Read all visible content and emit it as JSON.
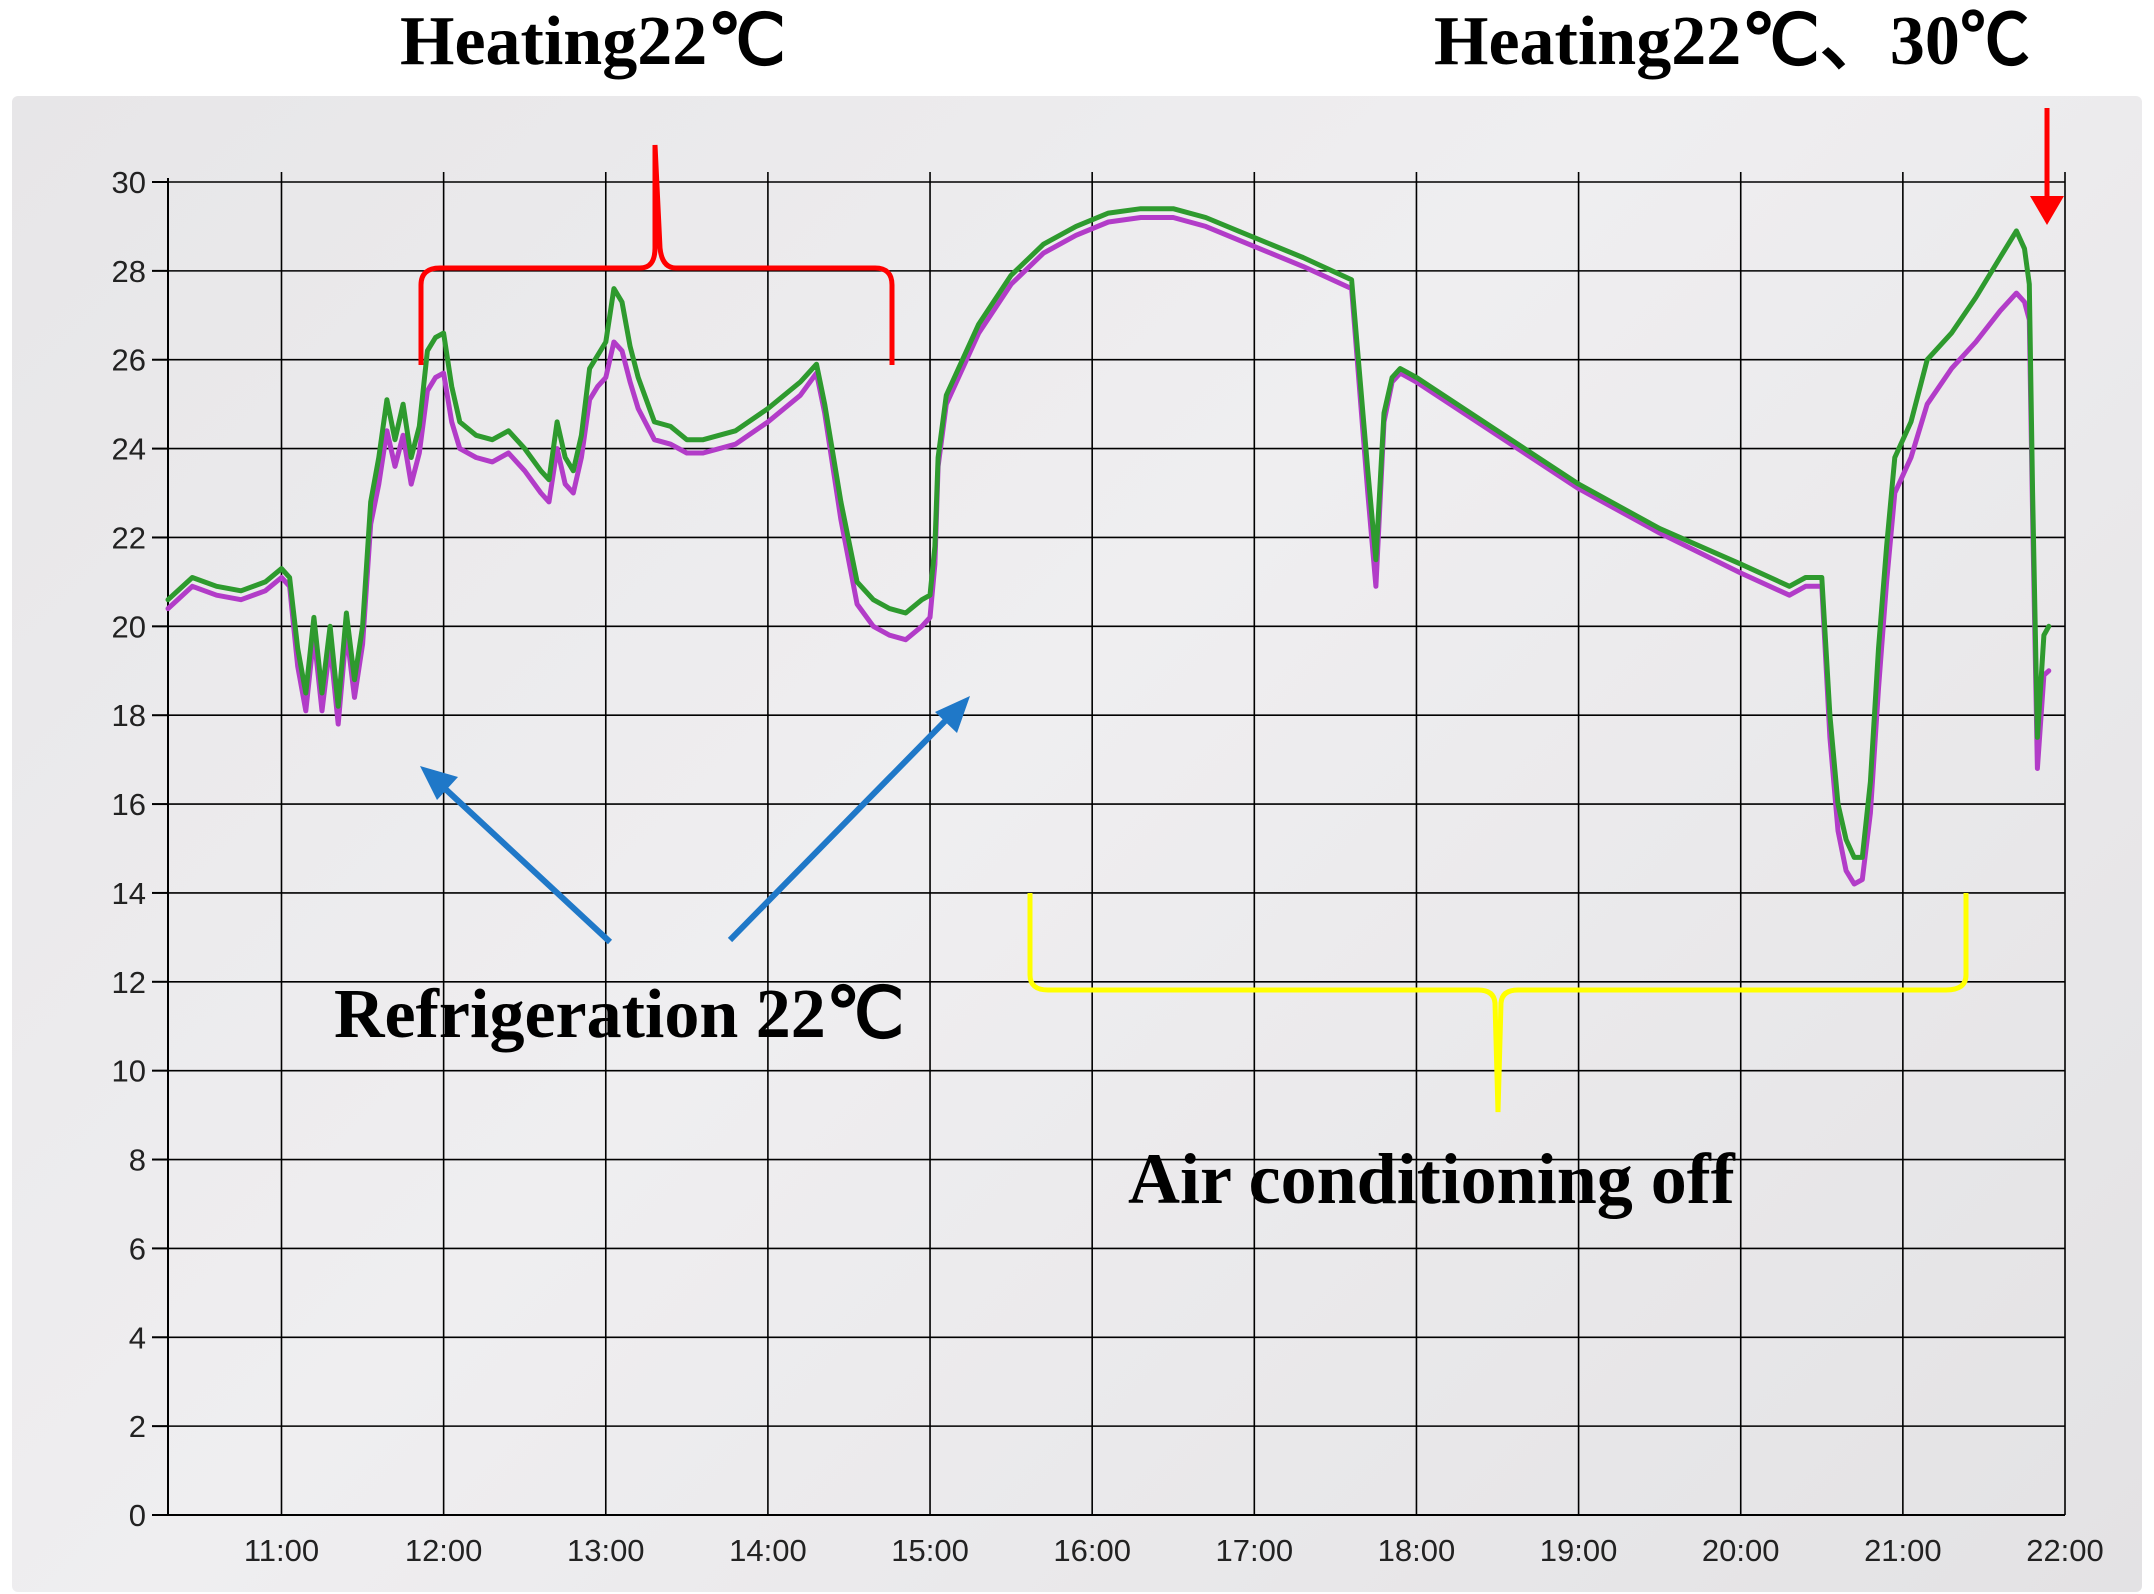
{
  "annotations": {
    "heating_left": "Heating22℃",
    "heating_right": "Heating22℃、30℃",
    "refrigeration": "Refrigeration 22℃",
    "ac_off": "Air conditioning off"
  },
  "colors": {
    "heating": "#ff0000",
    "refrigeration": "#1f78c8",
    "ac_off": "#ffff00",
    "series_upper": "#2e9a2e",
    "series_lower": "#b23cc8",
    "grid": "#000000"
  },
  "chart_data": {
    "type": "line",
    "xlabel": "",
    "ylabel": "",
    "xlim": [
      10.3,
      22.0
    ],
    "ylim": [
      0,
      30
    ],
    "grid": true,
    "legend": "none",
    "x_tick_labels": [
      "11:00",
      "12:00",
      "13:00",
      "14:00",
      "15:00",
      "16:00",
      "17:00",
      "18:00",
      "19:00",
      "20:00",
      "21:00",
      "22:00"
    ],
    "x_ticks": [
      11,
      12,
      13,
      14,
      15,
      16,
      17,
      18,
      19,
      20,
      21,
      22
    ],
    "y_tick_labels": [
      "0",
      "2",
      "4",
      "6",
      "8",
      "10",
      "12",
      "14",
      "16",
      "18",
      "20",
      "22",
      "24",
      "26",
      "28",
      "30"
    ],
    "y_ticks": [
      0,
      2,
      4,
      6,
      8,
      10,
      12,
      14,
      16,
      18,
      20,
      22,
      24,
      26,
      28,
      30
    ],
    "series": [
      {
        "color": "#2e9a2e",
        "points": [
          [
            10.3,
            20.6
          ],
          [
            10.45,
            21.1
          ],
          [
            10.6,
            20.9
          ],
          [
            10.75,
            20.8
          ],
          [
            10.9,
            21.0
          ],
          [
            11.0,
            21.3
          ],
          [
            11.05,
            21.1
          ],
          [
            11.1,
            19.5
          ],
          [
            11.15,
            18.5
          ],
          [
            11.2,
            20.2
          ],
          [
            11.25,
            18.5
          ],
          [
            11.3,
            20.0
          ],
          [
            11.35,
            18.2
          ],
          [
            11.4,
            20.3
          ],
          [
            11.45,
            18.8
          ],
          [
            11.5,
            20.0
          ],
          [
            11.55,
            22.8
          ],
          [
            11.6,
            23.8
          ],
          [
            11.65,
            25.1
          ],
          [
            11.7,
            24.2
          ],
          [
            11.75,
            25.0
          ],
          [
            11.8,
            23.8
          ],
          [
            11.85,
            24.5
          ],
          [
            11.9,
            26.2
          ],
          [
            11.95,
            26.5
          ],
          [
            12.0,
            26.6
          ],
          [
            12.05,
            25.4
          ],
          [
            12.1,
            24.6
          ],
          [
            12.2,
            24.3
          ],
          [
            12.3,
            24.2
          ],
          [
            12.4,
            24.4
          ],
          [
            12.5,
            24.0
          ],
          [
            12.6,
            23.5
          ],
          [
            12.65,
            23.3
          ],
          [
            12.7,
            24.6
          ],
          [
            12.75,
            23.8
          ],
          [
            12.8,
            23.5
          ],
          [
            12.85,
            24.3
          ],
          [
            12.9,
            25.8
          ],
          [
            12.95,
            26.1
          ],
          [
            13.0,
            26.4
          ],
          [
            13.05,
            27.6
          ],
          [
            13.1,
            27.3
          ],
          [
            13.15,
            26.3
          ],
          [
            13.2,
            25.6
          ],
          [
            13.3,
            24.6
          ],
          [
            13.4,
            24.5
          ],
          [
            13.5,
            24.2
          ],
          [
            13.6,
            24.2
          ],
          [
            13.8,
            24.4
          ],
          [
            14.0,
            24.9
          ],
          [
            14.2,
            25.5
          ],
          [
            14.3,
            25.9
          ],
          [
            14.35,
            25.0
          ],
          [
            14.45,
            22.8
          ],
          [
            14.55,
            21.0
          ],
          [
            14.65,
            20.6
          ],
          [
            14.75,
            20.4
          ],
          [
            14.85,
            20.3
          ],
          [
            14.95,
            20.6
          ],
          [
            15.0,
            20.7
          ],
          [
            15.03,
            21.8
          ],
          [
            15.05,
            23.8
          ],
          [
            15.1,
            25.2
          ],
          [
            15.3,
            26.8
          ],
          [
            15.5,
            27.9
          ],
          [
            15.7,
            28.6
          ],
          [
            15.9,
            29.0
          ],
          [
            16.1,
            29.3
          ],
          [
            16.3,
            29.4
          ],
          [
            16.5,
            29.4
          ],
          [
            16.7,
            29.2
          ],
          [
            16.9,
            28.9
          ],
          [
            17.1,
            28.6
          ],
          [
            17.3,
            28.3
          ],
          [
            17.6,
            27.8
          ],
          [
            17.7,
            23.5
          ],
          [
            17.75,
            21.5
          ],
          [
            17.8,
            24.8
          ],
          [
            17.85,
            25.6
          ],
          [
            17.9,
            25.8
          ],
          [
            18.0,
            25.6
          ],
          [
            18.5,
            24.4
          ],
          [
            19.0,
            23.2
          ],
          [
            19.5,
            22.2
          ],
          [
            20.0,
            21.4
          ],
          [
            20.3,
            20.9
          ],
          [
            20.4,
            21.1
          ],
          [
            20.5,
            21.1
          ],
          [
            20.55,
            18.0
          ],
          [
            20.6,
            16.0
          ],
          [
            20.65,
            15.2
          ],
          [
            20.7,
            14.8
          ],
          [
            20.75,
            14.8
          ],
          [
            20.8,
            16.5
          ],
          [
            20.85,
            19.5
          ],
          [
            20.9,
            21.8
          ],
          [
            20.95,
            23.8
          ],
          [
            21.05,
            24.6
          ],
          [
            21.15,
            26.0
          ],
          [
            21.3,
            26.6
          ],
          [
            21.45,
            27.4
          ],
          [
            21.6,
            28.3
          ],
          [
            21.7,
            28.9
          ],
          [
            21.75,
            28.5
          ],
          [
            21.78,
            27.7
          ],
          [
            21.8,
            23.0
          ],
          [
            21.83,
            17.5
          ],
          [
            21.87,
            19.8
          ],
          [
            21.9,
            20.0
          ]
        ]
      },
      {
        "color": "#b23cc8",
        "points": [
          [
            10.3,
            20.4
          ],
          [
            10.45,
            20.9
          ],
          [
            10.6,
            20.7
          ],
          [
            10.75,
            20.6
          ],
          [
            10.9,
            20.8
          ],
          [
            11.0,
            21.1
          ],
          [
            11.05,
            20.9
          ],
          [
            11.1,
            19.1
          ],
          [
            11.15,
            18.1
          ],
          [
            11.2,
            19.8
          ],
          [
            11.25,
            18.1
          ],
          [
            11.3,
            19.6
          ],
          [
            11.35,
            17.8
          ],
          [
            11.4,
            19.9
          ],
          [
            11.45,
            18.4
          ],
          [
            11.5,
            19.6
          ],
          [
            11.55,
            22.3
          ],
          [
            11.6,
            23.2
          ],
          [
            11.65,
            24.4
          ],
          [
            11.7,
            23.6
          ],
          [
            11.75,
            24.3
          ],
          [
            11.8,
            23.2
          ],
          [
            11.85,
            23.9
          ],
          [
            11.9,
            25.3
          ],
          [
            11.95,
            25.6
          ],
          [
            12.0,
            25.7
          ],
          [
            12.05,
            24.6
          ],
          [
            12.1,
            24.0
          ],
          [
            12.2,
            23.8
          ],
          [
            12.3,
            23.7
          ],
          [
            12.4,
            23.9
          ],
          [
            12.5,
            23.5
          ],
          [
            12.6,
            23.0
          ],
          [
            12.65,
            22.8
          ],
          [
            12.7,
            24.0
          ],
          [
            12.75,
            23.2
          ],
          [
            12.8,
            23.0
          ],
          [
            12.85,
            23.8
          ],
          [
            12.9,
            25.1
          ],
          [
            12.95,
            25.4
          ],
          [
            13.0,
            25.6
          ],
          [
            13.05,
            26.4
          ],
          [
            13.1,
            26.2
          ],
          [
            13.15,
            25.5
          ],
          [
            13.2,
            24.9
          ],
          [
            13.3,
            24.2
          ],
          [
            13.4,
            24.1
          ],
          [
            13.5,
            23.9
          ],
          [
            13.6,
            23.9
          ],
          [
            13.8,
            24.1
          ],
          [
            14.0,
            24.6
          ],
          [
            14.2,
            25.2
          ],
          [
            14.3,
            25.7
          ],
          [
            14.35,
            24.8
          ],
          [
            14.45,
            22.4
          ],
          [
            14.55,
            20.5
          ],
          [
            14.65,
            20.0
          ],
          [
            14.75,
            19.8
          ],
          [
            14.85,
            19.7
          ],
          [
            14.95,
            20.0
          ],
          [
            15.0,
            20.2
          ],
          [
            15.03,
            21.4
          ],
          [
            15.05,
            23.6
          ],
          [
            15.1,
            25.0
          ],
          [
            15.3,
            26.6
          ],
          [
            15.5,
            27.7
          ],
          [
            15.7,
            28.4
          ],
          [
            15.9,
            28.8
          ],
          [
            16.1,
            29.1
          ],
          [
            16.3,
            29.2
          ],
          [
            16.5,
            29.2
          ],
          [
            16.7,
            29.0
          ],
          [
            16.9,
            28.7
          ],
          [
            17.1,
            28.4
          ],
          [
            17.3,
            28.1
          ],
          [
            17.6,
            27.6
          ],
          [
            17.7,
            23.0
          ],
          [
            17.75,
            20.9
          ],
          [
            17.8,
            24.6
          ],
          [
            17.85,
            25.5
          ],
          [
            17.9,
            25.7
          ],
          [
            18.0,
            25.5
          ],
          [
            18.5,
            24.3
          ],
          [
            19.0,
            23.1
          ],
          [
            19.5,
            22.1
          ],
          [
            20.0,
            21.2
          ],
          [
            20.3,
            20.7
          ],
          [
            20.4,
            20.9
          ],
          [
            20.5,
            20.9
          ],
          [
            20.55,
            17.5
          ],
          [
            20.6,
            15.4
          ],
          [
            20.65,
            14.5
          ],
          [
            20.7,
            14.2
          ],
          [
            20.75,
            14.3
          ],
          [
            20.8,
            15.8
          ],
          [
            20.85,
            18.6
          ],
          [
            20.9,
            21.0
          ],
          [
            20.95,
            23.0
          ],
          [
            21.05,
            23.8
          ],
          [
            21.15,
            25.0
          ],
          [
            21.3,
            25.8
          ],
          [
            21.45,
            26.4
          ],
          [
            21.6,
            27.1
          ],
          [
            21.7,
            27.5
          ],
          [
            21.75,
            27.3
          ],
          [
            21.78,
            26.9
          ],
          [
            21.8,
            22.5
          ],
          [
            21.83,
            16.8
          ],
          [
            21.87,
            18.9
          ],
          [
            21.9,
            19.0
          ]
        ]
      }
    ]
  }
}
